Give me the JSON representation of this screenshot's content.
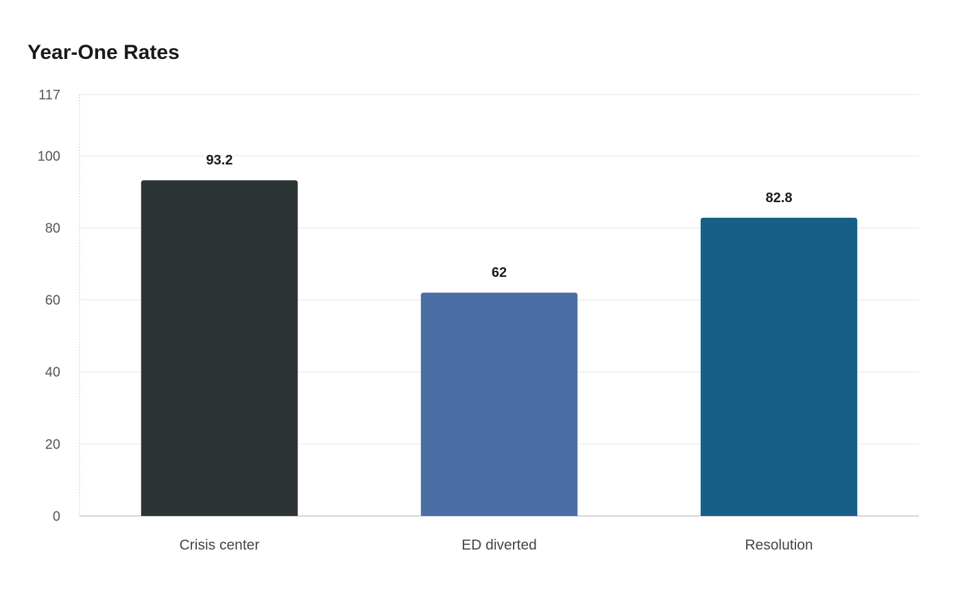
{
  "chart_data": {
    "type": "bar",
    "title": "Year-One Rates",
    "xlabel": "",
    "ylabel": "",
    "categories": [
      "Crisis center",
      "ED diverted",
      "Resolution"
    ],
    "values": [
      93.2,
      62,
      82.8
    ],
    "value_labels": [
      "93.2",
      "62",
      "82.8"
    ],
    "colors": [
      "#2d3436",
      "#4a6fa5",
      "#166088"
    ],
    "ylim": [
      0,
      117
    ],
    "yticks": [
      0,
      20,
      40,
      60,
      80,
      100,
      117
    ],
    "grid": true,
    "legend": "none"
  }
}
